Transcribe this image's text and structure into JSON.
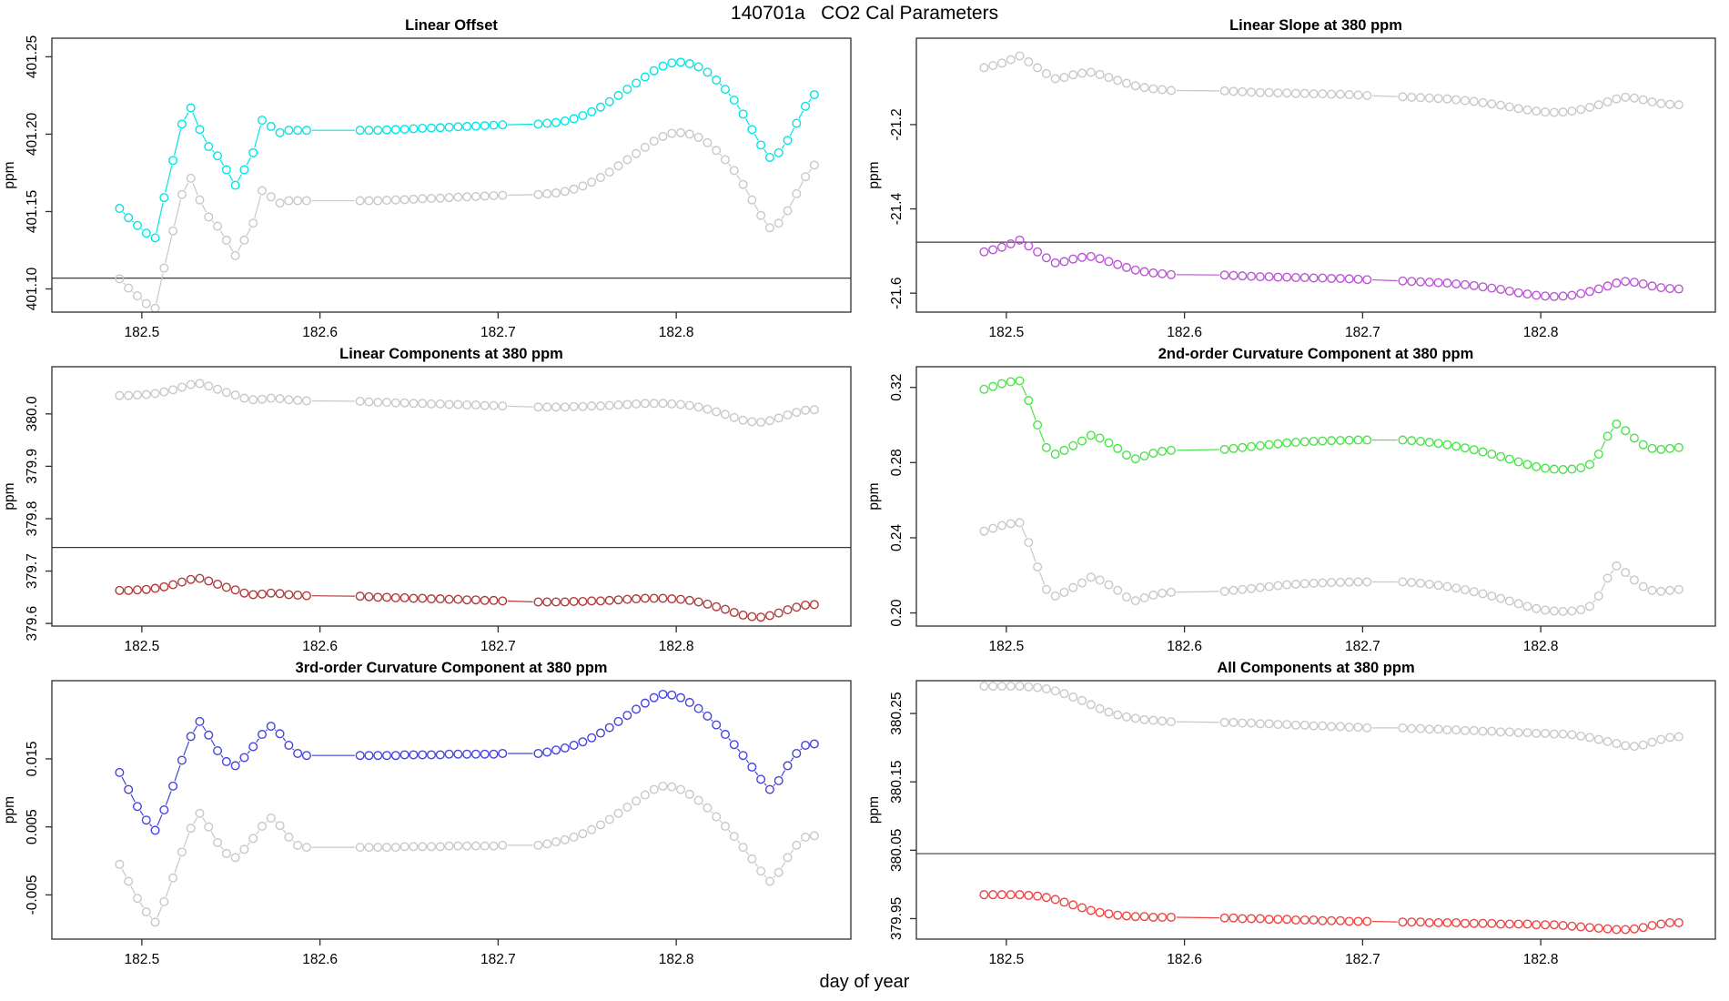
{
  "title": "140701a   CO2 Cal Parameters",
  "xlabel": "day of year",
  "chart_data": {
    "type": "line",
    "layout": "3-rows-2-cols",
    "marker": "open-circle",
    "grid": false,
    "legend": null,
    "colors": {
      "axis": "#2e2e2e",
      "ref_line": "#3c3c3c",
      "text": "#000000",
      "background": "#ffffff"
    },
    "xlabel": "day of year",
    "xlim": [
      182.4495,
      182.898
    ],
    "xtick_values": [
      182.5,
      182.6,
      182.7,
      182.8
    ],
    "xtick_labels": [
      "182.5",
      "182.6",
      "182.7",
      "182.8"
    ],
    "x_shared": [
      182.4875,
      182.4925,
      182.4975,
      182.5025,
      182.5075,
      182.5125,
      182.5175,
      182.5225,
      182.5275,
      182.5325,
      182.5375,
      182.5425,
      182.5475,
      182.5525,
      182.5575,
      182.5625,
      182.5675,
      182.5725,
      182.5775,
      182.5825,
      182.5875,
      182.5925,
      182.6225,
      182.6275,
      182.6325,
      182.6375,
      182.6425,
      182.6475,
      182.6525,
      182.6575,
      182.6625,
      182.6675,
      182.6725,
      182.6775,
      182.6825,
      182.6875,
      182.6925,
      182.6975,
      182.7025,
      182.7225,
      182.7275,
      182.7325,
      182.7375,
      182.7425,
      182.7475,
      182.7525,
      182.7575,
      182.7625,
      182.7675,
      182.7725,
      182.7775,
      182.7825,
      182.7875,
      182.7925,
      182.7975,
      182.8025,
      182.8075,
      182.8125,
      182.8175,
      182.8225,
      182.8275,
      182.8325,
      182.8375,
      182.8425,
      182.8475,
      182.8525,
      182.8575,
      182.8625,
      182.8675,
      182.8725,
      182.8775
    ],
    "panels": [
      {
        "title": "Linear Offset",
        "ylabel": "ppm",
        "ylim": [
          401.085,
          401.262
        ],
        "ytick_values": [
          401.1,
          401.15,
          401.2,
          401.25
        ],
        "ytick_labels": [
          "401.10",
          "401.15",
          "401.20",
          "401.25"
        ],
        "ref_line": 401.107,
        "shape": [
          401.152,
          401.146,
          401.141,
          401.136,
          401.133,
          401.159,
          401.183,
          401.2065,
          401.217,
          401.203,
          401.192,
          401.186,
          401.177,
          401.167,
          401.177,
          401.188,
          401.209,
          401.205,
          401.201,
          401.2025,
          401.2025,
          401.2025,
          401.2025,
          401.2025,
          401.2025,
          401.2028,
          401.203,
          401.2032,
          401.2035,
          401.2038,
          401.204,
          401.2042,
          401.2045,
          401.2048,
          401.205,
          401.2052,
          401.2055,
          401.2058,
          401.206,
          401.2065,
          401.207,
          401.2075,
          401.2085,
          401.21,
          401.212,
          401.2145,
          401.2175,
          401.221,
          401.225,
          401.229,
          401.233,
          401.237,
          401.241,
          401.244,
          401.246,
          401.2465,
          401.2455,
          401.2435,
          401.24,
          401.235,
          401.229,
          401.222,
          401.213,
          401.203,
          401.193,
          401.185,
          401.188,
          401.196,
          401.207,
          401.218,
          401.2255
        ],
        "series": [
          {
            "name": "cyan",
            "color": "#00e5e5",
            "offset": 0
          },
          {
            "name": "gray",
            "color": "#c8c8c8",
            "offset": -0.0455
          }
        ]
      },
      {
        "title": "Linear Slope at 380 ppm",
        "ylabel": "ppm",
        "ylim": [
          -21.645,
          -20.995
        ],
        "ytick_values": [
          -21.6,
          -21.4,
          -21.2
        ],
        "ytick_labels": [
          "-21.6",
          "-21.4",
          "-21.2"
        ],
        "ref_line": -21.479,
        "shape": [
          -21.502,
          -21.497,
          -21.491,
          -21.483,
          -21.474,
          -21.488,
          -21.502,
          -21.516,
          -21.528,
          -21.525,
          -21.519,
          -21.515,
          -21.513,
          -21.518,
          -21.525,
          -21.532,
          -21.539,
          -21.545,
          -21.549,
          -21.552,
          -21.554,
          -21.556,
          -21.557,
          -21.558,
          -21.559,
          -21.56,
          -21.561,
          -21.561,
          -21.562,
          -21.562,
          -21.563,
          -21.563,
          -21.564,
          -21.564,
          -21.565,
          -21.565,
          -21.566,
          -21.567,
          -21.568,
          -21.571,
          -21.572,
          -21.573,
          -21.574,
          -21.575,
          -21.576,
          -21.578,
          -21.58,
          -21.582,
          -21.585,
          -21.588,
          -21.591,
          -21.595,
          -21.599,
          -21.602,
          -21.605,
          -21.607,
          -21.608,
          -21.607,
          -21.605,
          -21.601,
          -21.596,
          -21.59,
          -21.583,
          -21.576,
          -21.572,
          -21.574,
          -21.578,
          -21.583,
          -21.587,
          -21.589,
          -21.59
        ],
        "series": [
          {
            "name": "gray",
            "color": "#c8c8c8",
            "offset": 0.437
          },
          {
            "name": "violet",
            "color": "#ba55d3",
            "offset": 0
          }
        ]
      },
      {
        "title": "Linear Components at 380 ppm",
        "ylabel": "ppm",
        "ylim": [
          379.595,
          380.09
        ],
        "ytick_values": [
          379.6,
          379.7,
          379.8,
          379.9,
          380.0
        ],
        "ytick_labels": [
          "379.6",
          "379.7",
          "379.8",
          "379.9",
          "380.0"
        ],
        "ref_line": 379.745,
        "shape": [
          379.663,
          379.663,
          379.664,
          379.665,
          379.667,
          379.67,
          379.674,
          379.679,
          379.684,
          379.686,
          379.681,
          379.675,
          379.669,
          379.664,
          379.658,
          379.655,
          379.656,
          379.658,
          379.657,
          379.655,
          379.654,
          379.653,
          379.652,
          379.651,
          379.65,
          379.65,
          379.649,
          379.649,
          379.648,
          379.648,
          379.647,
          379.647,
          379.646,
          379.646,
          379.645,
          379.645,
          379.644,
          379.644,
          379.643,
          379.641,
          379.641,
          379.641,
          379.641,
          379.642,
          379.642,
          379.643,
          379.643,
          379.644,
          379.645,
          379.646,
          379.647,
          379.648,
          379.648,
          379.648,
          379.647,
          379.646,
          379.644,
          379.641,
          379.637,
          379.632,
          379.627,
          379.621,
          379.616,
          379.613,
          379.612,
          379.615,
          379.62,
          379.626,
          379.631,
          379.635,
          379.636
        ],
        "series": [
          {
            "name": "gray",
            "color": "#c8c8c8",
            "offset": 0.372
          },
          {
            "name": "dark-red",
            "color": "#b03a3a",
            "offset": 0
          }
        ]
      },
      {
        "title": "2nd-order Curvature Component at 380 ppm",
        "ylabel": "ppm",
        "ylim": [
          0.193,
          0.331
        ],
        "ytick_values": [
          0.2,
          0.24,
          0.28,
          0.32
        ],
        "ytick_labels": [
          "0.20",
          "0.24",
          "0.28",
          "0.32"
        ],
        "ref_line": null,
        "shape": [
          0.319,
          0.3205,
          0.322,
          0.323,
          0.3235,
          0.313,
          0.3,
          0.288,
          0.2845,
          0.2865,
          0.289,
          0.2915,
          0.2945,
          0.293,
          0.2905,
          0.2875,
          0.284,
          0.282,
          0.2835,
          0.285,
          0.286,
          0.2865,
          0.287,
          0.2875,
          0.288,
          0.2885,
          0.289,
          0.2895,
          0.29,
          0.2905,
          0.2908,
          0.2911,
          0.2913,
          0.2915,
          0.2917,
          0.2918,
          0.2919,
          0.292,
          0.292,
          0.292,
          0.2917,
          0.2913,
          0.2908,
          0.2902,
          0.2895,
          0.2887,
          0.2878,
          0.2868,
          0.2857,
          0.2845,
          0.2832,
          0.2818,
          0.2804,
          0.279,
          0.2778,
          0.277,
          0.2765,
          0.2763,
          0.2765,
          0.2772,
          0.279,
          0.2845,
          0.294,
          0.3005,
          0.297,
          0.293,
          0.2895,
          0.2875,
          0.287,
          0.2875,
          0.288
        ],
        "series": [
          {
            "name": "green",
            "color": "#4ce24c",
            "offset": 0
          },
          {
            "name": "gray",
            "color": "#c8c8c8",
            "offset": -0.0755
          }
        ]
      },
      {
        "title": "3rd-order Curvature Component at 380 ppm",
        "ylabel": "ppm",
        "ylim": [
          -0.0115,
          0.0265
        ],
        "ytick_values": [
          -0.005,
          0.005,
          0.015
        ],
        "ytick_labels": [
          "-0.005",
          "0.005",
          "0.015"
        ],
        "ref_line": null,
        "shape": [
          0.013,
          0.0105,
          0.008,
          0.006,
          0.0045,
          0.0075,
          0.011,
          0.0148,
          0.0183,
          0.0205,
          0.0185,
          0.0162,
          0.0146,
          0.014,
          0.0152,
          0.0168,
          0.0186,
          0.0198,
          0.0187,
          0.017,
          0.0158,
          0.0155,
          0.0155,
          0.0155,
          0.0155,
          0.0155,
          0.0155,
          0.0156,
          0.0156,
          0.0156,
          0.0156,
          0.0156,
          0.0157,
          0.0157,
          0.0157,
          0.0157,
          0.0157,
          0.0157,
          0.0158,
          0.0158,
          0.016,
          0.0163,
          0.0166,
          0.017,
          0.0175,
          0.0181,
          0.0188,
          0.0196,
          0.0205,
          0.0214,
          0.0223,
          0.0232,
          0.024,
          0.0245,
          0.0244,
          0.024,
          0.0233,
          0.0224,
          0.0213,
          0.02,
          0.0186,
          0.0171,
          0.0155,
          0.0138,
          0.012,
          0.0105,
          0.0118,
          0.014,
          0.0158,
          0.017,
          0.0172
        ],
        "series": [
          {
            "name": "blue",
            "color": "#4444dd",
            "offset": 0
          },
          {
            "name": "gray",
            "color": "#c8c8c8",
            "offset": -0.0135
          }
        ]
      },
      {
        "title": "All Components at 380 ppm",
        "ylabel": "ppm",
        "ylim": [
          379.92,
          380.298
        ],
        "ytick_values": [
          379.95,
          380.05,
          380.15,
          380.25
        ],
        "ytick_labels": [
          "379.95",
          "380.05",
          "380.15",
          "380.25"
        ],
        "ref_line": 380.045,
        "shape": [
          380.29,
          380.29,
          380.29,
          380.29,
          380.29,
          380.289,
          380.288,
          380.286,
          380.283,
          380.279,
          380.274,
          380.269,
          380.263,
          380.257,
          380.252,
          380.248,
          380.245,
          380.243,
          380.241,
          380.24,
          380.239,
          380.238,
          380.237,
          380.237,
          380.236,
          380.236,
          380.235,
          380.235,
          380.234,
          380.234,
          380.233,
          380.233,
          380.232,
          380.232,
          380.231,
          380.231,
          380.23,
          380.23,
          380.229,
          380.229,
          380.228,
          380.228,
          380.227,
          380.227,
          380.226,
          380.226,
          380.225,
          380.225,
          380.224,
          380.224,
          380.223,
          380.223,
          380.222,
          380.222,
          380.221,
          380.221,
          380.22,
          380.22,
          380.219,
          380.217,
          380.215,
          380.212,
          380.209,
          380.206,
          380.203,
          380.202,
          380.204,
          380.208,
          380.212,
          380.215,
          380.216
        ],
        "series": [
          {
            "name": "gray",
            "color": "#c8c8c8",
            "offset": 0
          },
          {
            "name": "red",
            "color": "#ee4444",
            "offset": null,
            "y": [
              379.985,
              379.985,
              379.985,
              379.985,
              379.985,
              379.984,
              379.983,
              379.981,
              379.978,
              379.974,
              379.97,
              379.966,
              379.962,
              379.959,
              379.957,
              379.955,
              379.954,
              379.953,
              379.953,
              379.952,
              379.952,
              379.952,
              379.951,
              379.951,
              379.95,
              379.95,
              379.95,
              379.949,
              379.949,
              379.949,
              379.948,
              379.948,
              379.948,
              379.947,
              379.947,
              379.947,
              379.946,
              379.946,
              379.946,
              379.945,
              379.945,
              379.945,
              379.944,
              379.944,
              379.944,
              379.944,
              379.943,
              379.943,
              379.943,
              379.943,
              379.942,
              379.942,
              379.942,
              379.942,
              379.941,
              379.941,
              379.941,
              379.94,
              379.939,
              379.938,
              379.937,
              379.936,
              379.935,
              379.934,
              379.934,
              379.935,
              379.937,
              379.94,
              379.942,
              379.944,
              379.944
            ]
          }
        ]
      }
    ]
  }
}
